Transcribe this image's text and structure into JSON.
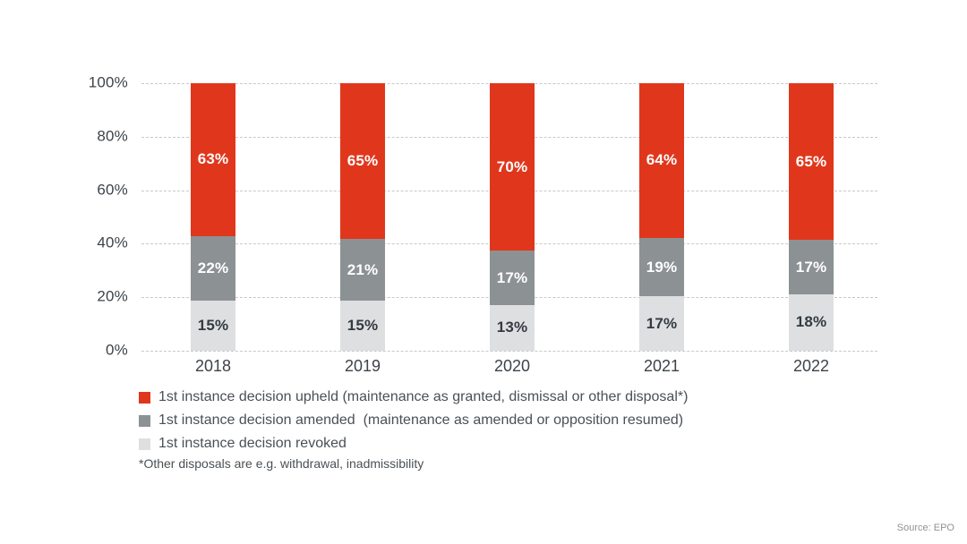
{
  "page": {
    "source_label": "Source: EPO"
  },
  "chart_data": {
    "type": "bar",
    "stacked": true,
    "title": "",
    "xlabel": "",
    "ylabel": "",
    "categories": [
      "2018",
      "2019",
      "2020",
      "2021",
      "2022"
    ],
    "series": [
      {
        "name": "1st instance decision upheld (maintenance as granted, dismissal or other disposal*)",
        "color": "#e0371c",
        "label_color": "#ffffff",
        "values": [
          63,
          65,
          70,
          64,
          65
        ]
      },
      {
        "name": "1st instance decision amended  (maintenance as amended or opposition resumed)",
        "color": "#8c9194",
        "label_color": "#ffffff",
        "values": [
          22,
          21,
          17,
          19,
          17
        ]
      },
      {
        "name": "1st instance decision revoked",
        "color": "#dedfe0",
        "label_color": "#333a42",
        "values": [
          15,
          15,
          13,
          17,
          18
        ]
      }
    ],
    "value_suffix": "%",
    "ylim": [
      0,
      100
    ],
    "yticks": [
      "100%",
      "80%",
      "60%",
      "40%",
      "20%",
      "0%"
    ],
    "grid": "horizontal-dashed",
    "legend_position": "bottom-left",
    "footnote": "*Other disposals are e.g. withdrawal, inadmissibility"
  }
}
